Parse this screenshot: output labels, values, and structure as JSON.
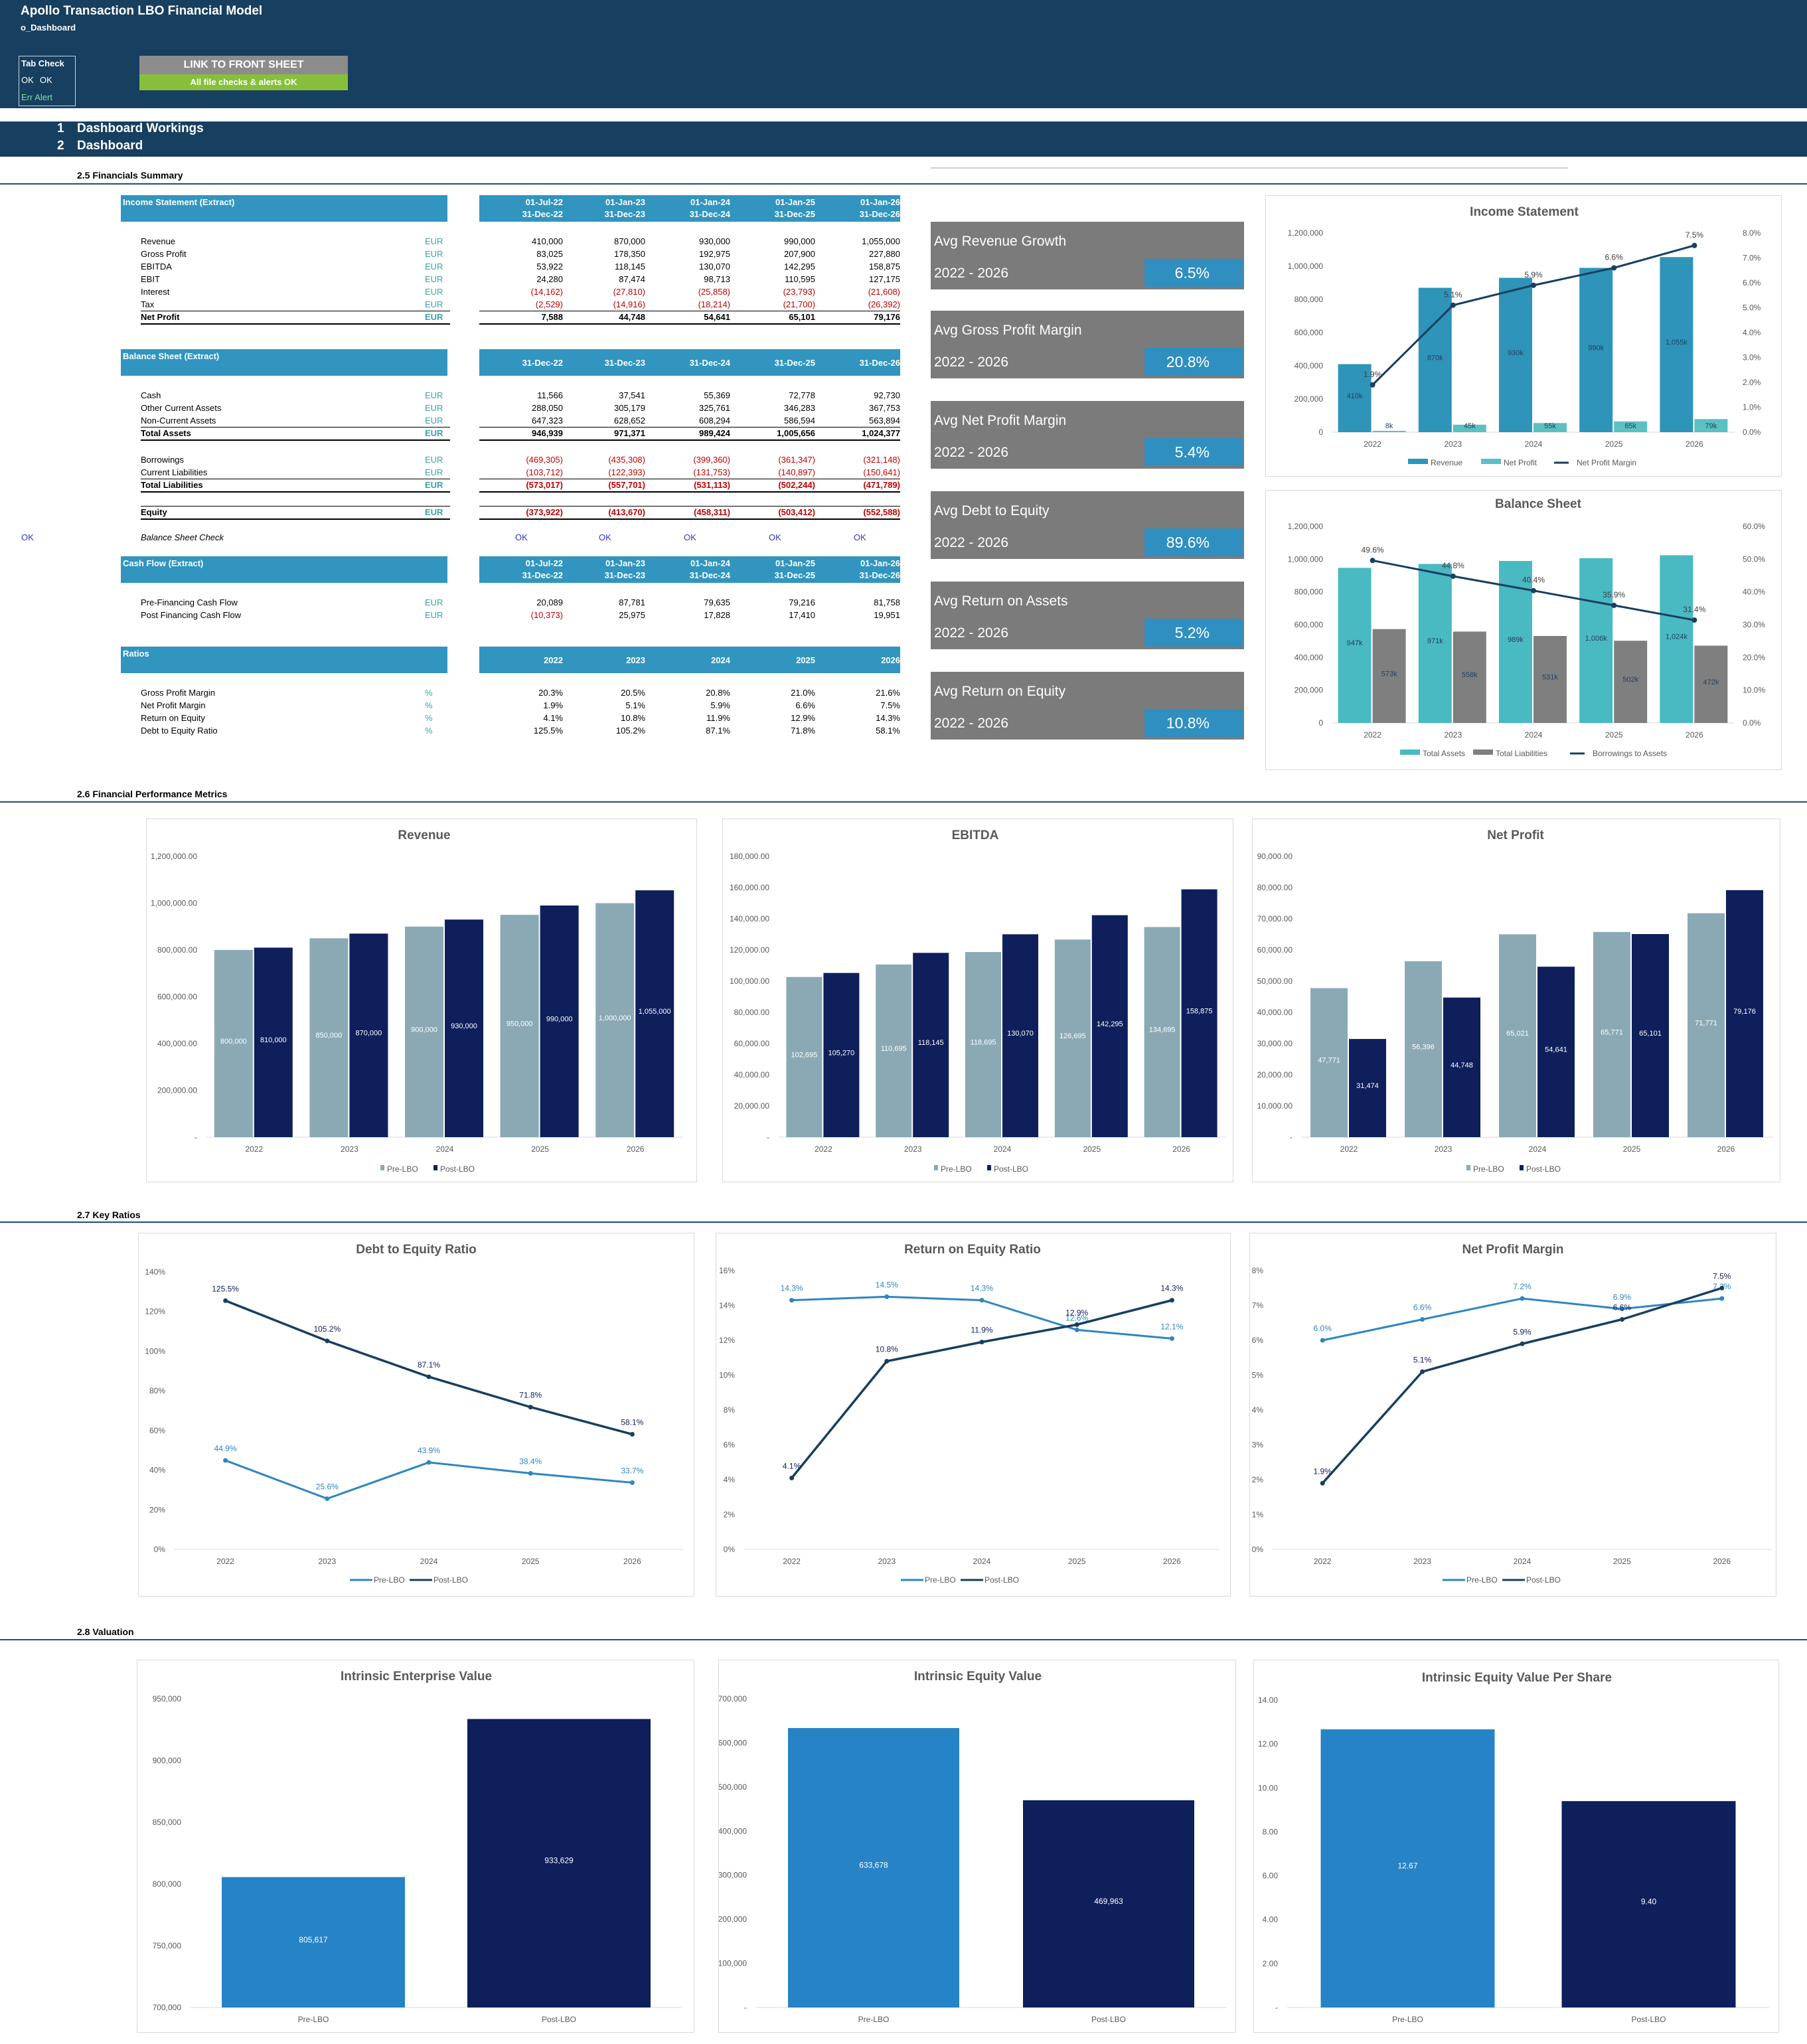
{
  "header": {
    "title": "Apollo Transaction LBO Financial Model",
    "subtitle": "o_Dashboard",
    "tab_check": "Tab Check",
    "ok1": "OK",
    "ok2": "OK",
    "err_alert": "Err Alert",
    "link_label": "LINK TO FRONT SHEET",
    "link_status": "All file checks & alerts OK"
  },
  "nav": [
    {
      "num": "1",
      "label": "Dashboard Workings"
    },
    {
      "num": "2",
      "label": "Dashboard"
    }
  ],
  "sections": {
    "s25": "2.5   Financials Summary",
    "s26": "2.6   Financial Performance Metrics",
    "s27": "2.7   Key Ratios",
    "s28": "2.8   Valuation"
  },
  "is": {
    "title": "Income Statement (Extract)",
    "periods_start": [
      "01-Jul-22",
      "01-Jan-23",
      "01-Jan-24",
      "01-Jan-25",
      "01-Jan-26"
    ],
    "periods_end": [
      "31-Dec-22",
      "31-Dec-23",
      "31-Dec-24",
      "31-Dec-25",
      "31-Dec-26"
    ],
    "rows": [
      {
        "label": "Revenue",
        "unit": "EUR",
        "vals": [
          "410,000",
          "870,000",
          "930,000",
          "990,000",
          "1,055,000"
        ]
      },
      {
        "label": "Gross Profit",
        "unit": "EUR",
        "vals": [
          "83,025",
          "178,350",
          "192,975",
          "207,900",
          "227,880"
        ]
      },
      {
        "label": "EBITDA",
        "unit": "EUR",
        "vals": [
          "53,922",
          "118,145",
          "130,070",
          "142,295",
          "158,875"
        ]
      },
      {
        "label": "EBIT",
        "unit": "EUR",
        "vals": [
          "24,280",
          "87,474",
          "98,713",
          "110,595",
          "127,175"
        ]
      },
      {
        "label": "Interest",
        "unit": "EUR",
        "vals": [
          "(14,162)",
          "(27,810)",
          "(25,858)",
          "(23,793)",
          "(21,608)"
        ],
        "neg": true
      },
      {
        "label": "Tax",
        "unit": "EUR",
        "vals": [
          "(2,529)",
          "(14,916)",
          "(18,214)",
          "(21,700)",
          "(26,392)"
        ],
        "neg": true
      },
      {
        "label": "Net Profit",
        "unit": "EUR",
        "vals": [
          "7,588",
          "44,748",
          "54,641",
          "65,101",
          "79,176"
        ],
        "bold": true
      }
    ]
  },
  "bs": {
    "title": "Balance Sheet (Extract)",
    "periods": [
      "31-Dec-22",
      "31-Dec-23",
      "31-Dec-24",
      "31-Dec-25",
      "31-Dec-26"
    ],
    "rows": [
      {
        "label": "Cash",
        "unit": "EUR",
        "vals": [
          "11,566",
          "37,541",
          "55,369",
          "72,778",
          "92,730"
        ]
      },
      {
        "label": "Other Current Assets",
        "unit": "EUR",
        "vals": [
          "288,050",
          "305,179",
          "325,761",
          "346,283",
          "367,753"
        ]
      },
      {
        "label": "Non-Current Assets",
        "unit": "EUR",
        "vals": [
          "647,323",
          "628,652",
          "608,294",
          "586,594",
          "563,894"
        ]
      },
      {
        "label": "Total Assets",
        "unit": "EUR",
        "vals": [
          "946,939",
          "971,371",
          "989,424",
          "1,005,656",
          "1,024,377"
        ],
        "bold": true
      },
      {
        "label": "Borrowings",
        "unit": "EUR",
        "vals": [
          "(469,305)",
          "(435,308)",
          "(399,360)",
          "(361,347)",
          "(321,148)"
        ],
        "neg": true
      },
      {
        "label": "Current Liabilities",
        "unit": "EUR",
        "vals": [
          "(103,712)",
          "(122,393)",
          "(131,753)",
          "(140,897)",
          "(150,641)"
        ],
        "neg": true
      },
      {
        "label": "Total Liabilities",
        "unit": "EUR",
        "vals": [
          "(573,017)",
          "(557,701)",
          "(531,113)",
          "(502,244)",
          "(471,789)"
        ],
        "neg": true,
        "bold": true
      },
      {
        "label": "Equity",
        "unit": "EUR",
        "vals": [
          "(373,922)",
          "(413,670)",
          "(458,311)",
          "(503,412)",
          "(552,588)"
        ],
        "neg": true,
        "bold": true
      }
    ],
    "check_label": "Balance Sheet Check",
    "check_left": "OK",
    "check_vals": [
      "OK",
      "OK",
      "OK",
      "OK",
      "OK"
    ]
  },
  "cf": {
    "title": "Cash Flow (Extract)",
    "periods_start": [
      "01-Jul-22",
      "01-Jan-23",
      "01-Jan-24",
      "01-Jan-25",
      "01-Jan-26"
    ],
    "periods_end": [
      "31-Dec-22",
      "31-Dec-23",
      "31-Dec-24",
      "31-Dec-25",
      "31-Dec-26"
    ],
    "rows": [
      {
        "label": "Pre-Financing Cash Flow",
        "unit": "EUR",
        "vals": [
          "20,089",
          "87,781",
          "79,635",
          "79,216",
          "81,758"
        ]
      },
      {
        "label": "Post Financing Cash Flow",
        "unit": "EUR",
        "vals": [
          "(10,373)",
          "25,975",
          "17,828",
          "17,410",
          "19,951"
        ],
        "neg_first": true
      }
    ]
  },
  "ratios": {
    "title": "Ratios",
    "years": [
      "2022",
      "2023",
      "2024",
      "2025",
      "2026"
    ],
    "rows": [
      {
        "label": "Gross Profit Margin",
        "unit": "%",
        "vals": [
          "20.3%",
          "20.5%",
          "20.8%",
          "21.0%",
          "21.6%"
        ]
      },
      {
        "label": "Net Profit Margin",
        "unit": "%",
        "vals": [
          "1.9%",
          "5.1%",
          "5.9%",
          "6.6%",
          "7.5%"
        ]
      },
      {
        "label": "Return on Equity",
        "unit": "%",
        "vals": [
          "4.1%",
          "10.8%",
          "11.9%",
          "12.9%",
          "14.3%"
        ]
      },
      {
        "label": "Debt to Equity Ratio",
        "unit": "%",
        "vals": [
          "125.5%",
          "105.2%",
          "87.1%",
          "71.8%",
          "58.1%"
        ]
      }
    ]
  },
  "kpis": [
    {
      "label": "Avg Revenue Growth",
      "period": "2022 - 2026",
      "value": "6.5%"
    },
    {
      "label": "Avg Gross Profit Margin",
      "period": "2022 - 2026",
      "value": "20.8%"
    },
    {
      "label": "Avg Net Profit Margin",
      "period": "2022 - 2026",
      "value": "5.4%"
    },
    {
      "label": "Avg Debt to Equity",
      "period": "2022 - 2026",
      "value": "89.6%"
    },
    {
      "label": "Avg Return on Assets",
      "period": "2022 - 2026",
      "value": "5.2%"
    },
    {
      "label": "Avg Return on Equity",
      "period": "2022 - 2026",
      "value": "10.8%"
    }
  ],
  "colors": {
    "navy": "#173f5f",
    "teal_bar": "#2e94b9",
    "light_teal": "#5bc0c0",
    "gray_bar": "#7f7f7f",
    "prelbo": "#8aa9b5",
    "postlbo": "#0e1f5b",
    "line_light": "#2e86c1",
    "val_pre": "#2684c6",
    "val_post": "#0e1f5b"
  },
  "chart_data": [
    {
      "id": "income",
      "type": "bar",
      "title": "Income Statement",
      "categories": [
        "2022",
        "2023",
        "2024",
        "2025",
        "2026"
      ],
      "series": [
        {
          "name": "Revenue",
          "values": [
            410000,
            870000,
            930000,
            990000,
            1055000
          ],
          "labels": [
            "410k",
            "870k",
            "930k",
            "990k",
            "1,055k"
          ]
        },
        {
          "name": "Net Profit",
          "values": [
            8000,
            45000,
            55000,
            65000,
            79000
          ],
          "labels": [
            "8k",
            "45k",
            "55k",
            "65k",
            "79k"
          ]
        },
        {
          "name": "Net Profit Margin",
          "axis": "right",
          "values": [
            1.9,
            5.1,
            5.9,
            6.6,
            7.5
          ],
          "labels": [
            "1.9%",
            "5.1%",
            "5.9%",
            "6.6%",
            "7.5%"
          ]
        }
      ],
      "ylim": [
        0,
        1200000
      ],
      "yticks": [
        "0",
        "200,000",
        "400,000",
        "600,000",
        "800,000",
        "1,000,000",
        "1,200,000"
      ],
      "y2lim": [
        0,
        8
      ],
      "y2ticks": [
        "0.0%",
        "1.0%",
        "2.0%",
        "3.0%",
        "4.0%",
        "5.0%",
        "6.0%",
        "7.0%",
        "8.0%"
      ]
    },
    {
      "id": "balance",
      "type": "bar",
      "title": "Balance Sheet",
      "categories": [
        "2022",
        "2023",
        "2024",
        "2025",
        "2026"
      ],
      "series": [
        {
          "name": "Total Assets",
          "values": [
            947000,
            971000,
            989000,
            1006000,
            1024000
          ],
          "labels": [
            "947k",
            "971k",
            "989k",
            "1,006k",
            "1,024k"
          ]
        },
        {
          "name": "Total Liabilities",
          "values": [
            573000,
            558000,
            531000,
            502000,
            472000
          ],
          "labels": [
            "573k",
            "558k",
            "531k",
            "502k",
            "472k"
          ]
        },
        {
          "name": "Borrowings to Assets",
          "axis": "right",
          "values": [
            49.6,
            44.8,
            40.4,
            35.9,
            31.4
          ],
          "labels": [
            "49.6%",
            "44.8%",
            "40.4%",
            "35.9%",
            "31.4%"
          ]
        }
      ],
      "ylim": [
        0,
        1200000
      ],
      "yticks": [
        "0",
        "200,000",
        "400,000",
        "600,000",
        "800,000",
        "1,000,000",
        "1,200,000"
      ],
      "y2lim": [
        0,
        60
      ],
      "y2ticks": [
        "0.0%",
        "10.0%",
        "20.0%",
        "30.0%",
        "40.0%",
        "50.0%",
        "60.0%"
      ]
    },
    {
      "id": "revenue",
      "type": "bar",
      "title": "Revenue",
      "categories": [
        "2022",
        "2023",
        "2024",
        "2025",
        "2026"
      ],
      "series": [
        {
          "name": "Pre-LBO",
          "values": [
            800000,
            850000,
            900000,
            950000,
            1000000
          ],
          "labels": [
            "800,000",
            "850,000",
            "900,000",
            "950,000",
            "1,000,000"
          ]
        },
        {
          "name": "Post-LBO",
          "values": [
            810000,
            870000,
            930000,
            990000,
            1055000
          ],
          "labels": [
            "810,000",
            "870,000",
            "930,000",
            "990,000",
            "1,055,000"
          ]
        }
      ],
      "ylim": [
        0,
        1200000
      ],
      "yticks": [
        "-",
        "200,000.00",
        "400,000.00",
        "600,000.00",
        "800,000.00",
        "1,000,000.00",
        "1,200,000.00"
      ]
    },
    {
      "id": "ebitda",
      "type": "bar",
      "title": "EBITDA",
      "categories": [
        "2022",
        "2023",
        "2024",
        "2025",
        "2026"
      ],
      "series": [
        {
          "name": "Pre-LBO",
          "values": [
            102695,
            110695,
            118695,
            126695,
            134695
          ],
          "labels": [
            "102,695",
            "110,695",
            "118,695",
            "126,695",
            "134,695"
          ]
        },
        {
          "name": "Post-LBO",
          "values": [
            105270,
            118145,
            130070,
            142295,
            158875
          ],
          "labels": [
            "105,270",
            "118,145",
            "130,070",
            "142,295",
            "158,875"
          ]
        }
      ],
      "ylim": [
        0,
        180000
      ],
      "yticks": [
        "-",
        "20,000.00",
        "40,000.00",
        "60,000.00",
        "80,000.00",
        "100,000.00",
        "120,000.00",
        "140,000.00",
        "160,000.00",
        "180,000.00"
      ]
    },
    {
      "id": "netprofit",
      "type": "bar",
      "title": "Net Profit",
      "categories": [
        "2022",
        "2023",
        "2024",
        "2025",
        "2026"
      ],
      "series": [
        {
          "name": "Pre-LBO",
          "values": [
            47771,
            56396,
            65021,
            65771,
            71771
          ],
          "labels": [
            "47,771",
            "56,396",
            "65,021",
            "65,771",
            "71,771"
          ]
        },
        {
          "name": "Post-LBO",
          "values": [
            31474,
            44748,
            54641,
            65101,
            79176
          ],
          "labels": [
            "31,474",
            "44,748",
            "54,641",
            "65,101",
            "79,176"
          ]
        }
      ],
      "ylim": [
        0,
        90000
      ],
      "yticks": [
        "-",
        "10,000.00",
        "20,000.00",
        "30,000.00",
        "40,000.00",
        "50,000.00",
        "60,000.00",
        "70,000.00",
        "80,000.00",
        "90,000.00"
      ]
    },
    {
      "id": "de",
      "type": "line",
      "title": "Debt to Equity Ratio",
      "categories": [
        "2022",
        "2023",
        "2024",
        "2025",
        "2026"
      ],
      "series": [
        {
          "name": "Pre-LBO",
          "values": [
            44.9,
            25.6,
            43.9,
            38.4,
            33.7
          ],
          "labels": [
            "44.9%",
            "25.6%",
            "43.9%",
            "38.4%",
            "33.7%"
          ]
        },
        {
          "name": "Post-LBO",
          "values": [
            125.5,
            105.2,
            87.1,
            71.8,
            58.1
          ],
          "labels": [
            "125.5%",
            "105.2%",
            "87.1%",
            "71.8%",
            "58.1%"
          ]
        }
      ],
      "ylim": [
        0,
        140
      ],
      "yticks": [
        "0%",
        "20%",
        "40%",
        "60%",
        "80%",
        "100%",
        "120%",
        "140%"
      ]
    },
    {
      "id": "roe",
      "type": "line",
      "title": "Return on Equity Ratio",
      "categories": [
        "2022",
        "2023",
        "2024",
        "2025",
        "2026"
      ],
      "series": [
        {
          "name": "Pre-LBO",
          "values": [
            14.3,
            14.5,
            14.3,
            12.6,
            12.1
          ],
          "labels": [
            "14.3%",
            "14.5%",
            "14.3%",
            "12.6%",
            "12.1%"
          ]
        },
        {
          "name": "Post-LBO",
          "values": [
            4.1,
            10.8,
            11.9,
            12.9,
            14.3
          ],
          "labels": [
            "4.1%",
            "10.8%",
            "11.9%",
            "12.9%",
            "14.3%"
          ]
        }
      ],
      "ylim": [
        0,
        16
      ],
      "yticks": [
        "0%",
        "2%",
        "4%",
        "6%",
        "8%",
        "10%",
        "12%",
        "14%",
        "16%"
      ]
    },
    {
      "id": "npm",
      "type": "line",
      "title": "Net Profit Margin",
      "categories": [
        "2022",
        "2023",
        "2024",
        "2025",
        "2026"
      ],
      "series": [
        {
          "name": "Pre-LBO",
          "values": [
            6.0,
            6.6,
            7.2,
            6.9,
            7.2
          ],
          "labels": [
            "6.0%",
            "6.6%",
            "7.2%",
            "6.9%",
            "7.2%"
          ]
        },
        {
          "name": "Post-LBO",
          "values": [
            1.9,
            5.1,
            5.9,
            6.6,
            7.5
          ],
          "labels": [
            "1.9%",
            "5.1%",
            "5.9%",
            "6.6%",
            "7.5%"
          ]
        }
      ],
      "ylim": [
        0,
        8
      ],
      "yticks": [
        "0%",
        "1%",
        "2%",
        "3%",
        "4%",
        "5%",
        "6%",
        "7%",
        "8%"
      ]
    },
    {
      "id": "iev",
      "type": "bar",
      "title": "Intrinsic Enterprise Value",
      "categories": [
        "Pre-LBO",
        "Post-LBO"
      ],
      "values": [
        805617,
        933629
      ],
      "labels": [
        "805,617",
        "933,629"
      ],
      "ylim": [
        700000,
        950000
      ],
      "yticks": [
        "700,000",
        "750,000",
        "800,000",
        "850,000",
        "900,000",
        "950,000"
      ]
    },
    {
      "id": "ieqv",
      "type": "bar",
      "title": "Intrinsic Equity Value",
      "categories": [
        "Pre-LBO",
        "Post-LBO"
      ],
      "values": [
        633678,
        469963
      ],
      "labels": [
        "633,678",
        "469,963"
      ],
      "ylim": [
        0,
        700000
      ],
      "yticks": [
        "-",
        "100,000",
        "200,000",
        "300,000",
        "400,000",
        "500,000",
        "600,000",
        "700,000"
      ]
    },
    {
      "id": "ieps",
      "type": "bar",
      "title": "Intrinsic Equity Value Per Share",
      "categories": [
        "Pre-LBO",
        "Post-LBO"
      ],
      "values": [
        12.67,
        9.4
      ],
      "labels": [
        "12.67",
        "9.40"
      ],
      "ylim": [
        0,
        14
      ],
      "yticks": [
        "-",
        "2.00",
        "4.00",
        "6.00",
        "8.00",
        "10.00",
        "12.00",
        "14.00"
      ]
    }
  ]
}
